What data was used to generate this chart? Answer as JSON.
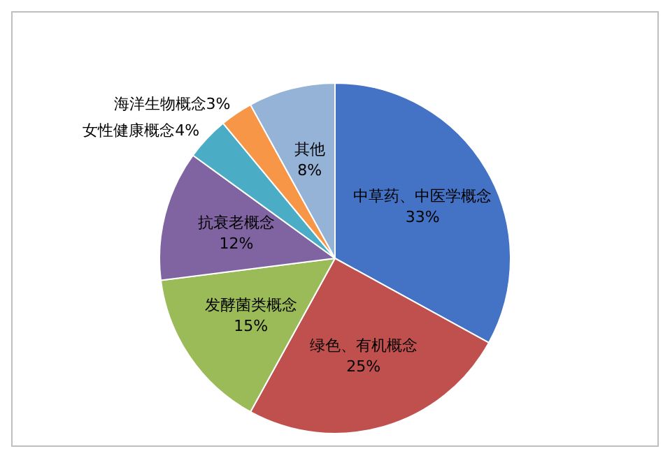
{
  "chart_data": {
    "type": "pie",
    "categories": [
      "中草药、中医学概念",
      "绿色、有机概念",
      "发酵菌类概念",
      "抗衰老概念",
      "女性健康概念",
      "海洋生物概念",
      "其他"
    ],
    "values": [
      33,
      25,
      15,
      12,
      4,
      3,
      8
    ],
    "colors": [
      "#4472c4",
      "#c0504d",
      "#9bbb59",
      "#8064a2",
      "#4bacc6",
      "#f79646",
      "#95b3d7"
    ],
    "value_labels": [
      "33%",
      "25%",
      "15%",
      "12%",
      "4%",
      "3%",
      "8%"
    ],
    "legend": false
  }
}
